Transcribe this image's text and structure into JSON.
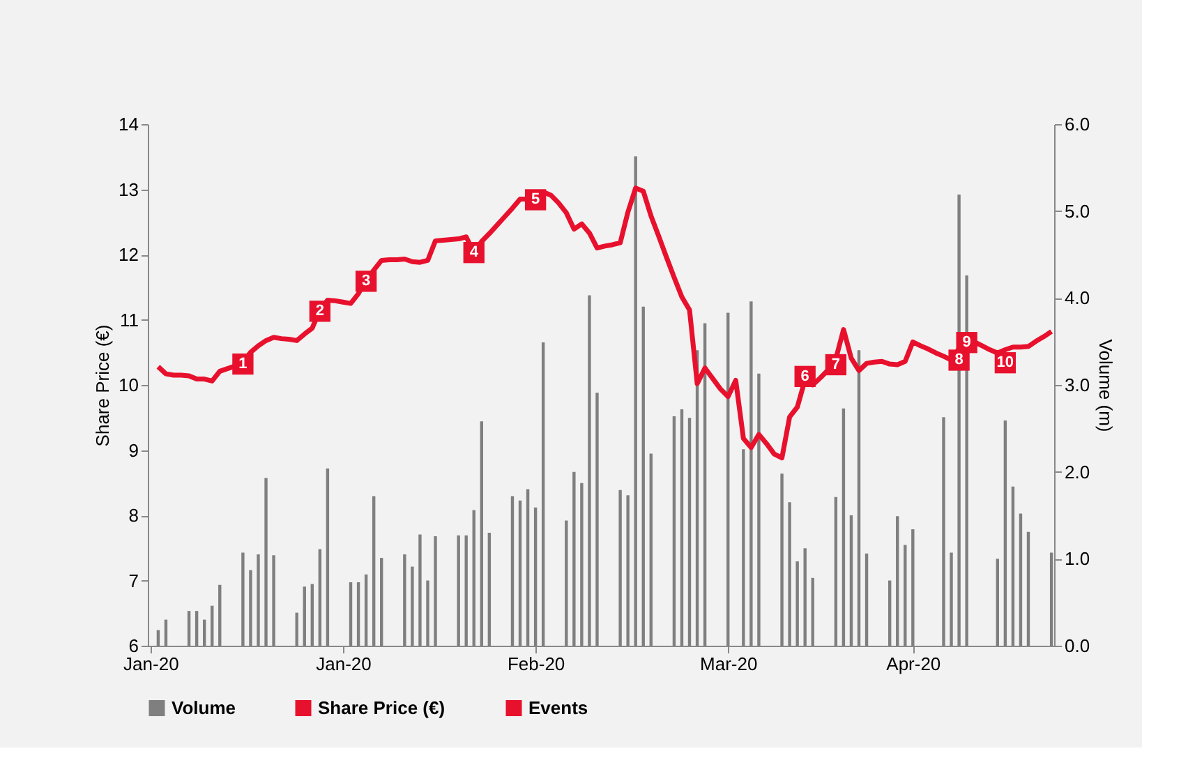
{
  "chart_data": {
    "type": "line",
    "ylabel": "Share Price (€)",
    "y2label": "Volume (m)",
    "categories": [
      "Jan-20",
      null,
      null,
      null,
      null,
      null,
      null,
      null,
      null,
      null,
      null,
      null,
      null,
      null,
      null,
      null,
      null,
      null,
      null,
      null,
      null,
      null,
      null,
      null,
      null,
      "Jan-20",
      null,
      null,
      null,
      null,
      null,
      null,
      null,
      null,
      null,
      null,
      null,
      null,
      null,
      null,
      null,
      null,
      null,
      null,
      null,
      null,
      null,
      null,
      null,
      null,
      "Feb-20",
      null,
      null,
      null,
      null,
      null,
      null,
      null,
      null,
      null,
      null,
      null,
      null,
      null,
      null,
      null,
      null,
      null,
      null,
      null,
      null,
      null,
      null,
      null,
      null,
      "Mar-20",
      null,
      null,
      null,
      null,
      null,
      null,
      null,
      null,
      null,
      null,
      null,
      null,
      null,
      null,
      null,
      null,
      null,
      null,
      null,
      null,
      null,
      null,
      null,
      "Apr-20",
      null,
      null,
      null,
      null,
      null,
      null,
      null,
      null,
      null,
      null,
      null,
      null,
      null,
      null,
      null,
      null,
      null,
      null
    ],
    "ylim": [
      6,
      14
    ],
    "yticks": [
      6,
      7,
      8,
      9,
      10,
      11,
      12,
      13,
      14
    ],
    "y2lim": [
      0,
      6
    ],
    "y2ticks": [
      {
        "value": 0,
        "label": "0.0"
      },
      {
        "value": 1,
        "label": "1.0"
      },
      {
        "value": 2,
        "label": "2.0"
      },
      {
        "value": 3,
        "label": "3.0"
      },
      {
        "value": 4,
        "label": "4.0"
      },
      {
        "value": 5,
        "label": "5.0"
      },
      {
        "value": 6,
        "label": "6.0"
      }
    ],
    "grid": false,
    "legend": "bottom",
    "annotations": [
      "1",
      "2",
      "3",
      "4",
      "5",
      "6",
      "7",
      "8",
      "9",
      "10"
    ],
    "series": [
      {
        "name": "Volume",
        "type": "bar",
        "axis": "y2",
        "color": "#7f7f7f",
        "values": [
          null,
          0.18,
          0.3,
          null,
          null,
          0.4,
          0.4,
          0.3,
          0.46,
          0.7,
          null,
          null,
          1.07,
          0.87,
          1.05,
          1.93,
          1.04,
          null,
          null,
          0.38,
          0.68,
          0.71,
          1.11,
          2.04,
          null,
          null,
          0.73,
          0.73,
          0.82,
          1.72,
          1.01,
          null,
          null,
          1.05,
          0.91,
          1.28,
          0.75,
          1.26,
          null,
          null,
          1.27,
          1.27,
          1.56,
          2.58,
          1.3,
          null,
          null,
          1.72,
          1.67,
          1.8,
          1.59,
          3.49,
          null,
          null,
          1.44,
          2.0,
          1.87,
          4.03,
          2.91,
          null,
          null,
          1.79,
          1.73,
          5.63,
          3.9,
          2.21,
          null,
          null,
          2.64,
          2.72,
          2.62,
          3.4,
          3.71,
          null,
          null,
          3.83,
          null,
          2.26,
          3.96,
          3.13,
          null,
          null,
          1.98,
          1.65,
          0.97,
          1.12,
          0.78,
          null,
          null,
          1.71,
          2.73,
          1.5,
          3.4,
          1.06,
          null,
          null,
          0.75,
          1.49,
          1.16,
          1.34,
          null,
          null,
          null,
          2.63,
          1.07,
          5.19,
          4.26,
          null,
          null,
          null,
          1.0,
          2.59,
          1.83,
          1.52,
          1.31,
          null,
          null,
          1.07
        ]
      },
      {
        "name": "Share Price (€)",
        "color": "#e8112d",
        "marker": "none",
        "line_style": "solid",
        "values": [
          null,
          10.28,
          10.17,
          10.15,
          10.15,
          10.14,
          10.09,
          10.09,
          10.06,
          10.21,
          10.25,
          10.29,
          10.35,
          10.5,
          10.6,
          10.68,
          10.73,
          10.71,
          10.7,
          10.68,
          10.78,
          10.87,
          11.15,
          11.3,
          11.29,
          11.27,
          11.25,
          11.4,
          11.61,
          11.76,
          11.91,
          11.92,
          11.92,
          11.93,
          11.89,
          11.88,
          11.91,
          12.21,
          12.22,
          12.23,
          12.24,
          12.27,
          12.03,
          12.2,
          12.32,
          12.45,
          12.58,
          12.71,
          12.85,
          12.85,
          12.84,
          12.96,
          12.91,
          12.79,
          12.64,
          12.39,
          12.47,
          12.33,
          12.1,
          12.13,
          12.15,
          12.18,
          12.65,
          13.02,
          12.97,
          12.59,
          12.28,
          11.96,
          11.65,
          11.35,
          11.15,
          10.02,
          10.26,
          10.1,
          9.94,
          9.82,
          10.07,
          9.18,
          9.04,
          9.24,
          9.1,
          8.94,
          8.88,
          9.51,
          9.66,
          10.08,
          10.0,
          10.11,
          10.23,
          10.4,
          10.85,
          10.41,
          10.22,
          10.33,
          10.35,
          10.36,
          10.32,
          10.31,
          10.36,
          10.66,
          10.6,
          10.55,
          10.49,
          10.44,
          10.38,
          10.56,
          10.72,
          10.66,
          10.6,
          10.54,
          10.49,
          10.54,
          10.58,
          10.58,
          10.59,
          10.67,
          10.74,
          10.82
        ]
      },
      {
        "name": "Events",
        "type": "scatter",
        "marker": "square",
        "color": "#e8112d",
        "values": [
          null,
          null,
          null,
          null,
          null,
          null,
          null,
          null,
          null,
          null,
          null,
          null,
          10.32,
          null,
          null,
          null,
          null,
          null,
          null,
          null,
          null,
          null,
          11.13,
          null,
          null,
          null,
          null,
          null,
          11.59,
          null,
          null,
          null,
          null,
          null,
          null,
          null,
          null,
          null,
          null,
          null,
          null,
          null,
          12.03,
          null,
          null,
          null,
          null,
          null,
          null,
          null,
          12.84,
          null,
          null,
          null,
          null,
          null,
          null,
          null,
          null,
          null,
          null,
          null,
          null,
          null,
          null,
          null,
          null,
          null,
          null,
          null,
          null,
          null,
          null,
          null,
          null,
          null,
          null,
          null,
          null,
          null,
          null,
          null,
          null,
          null,
          null,
          10.13,
          null,
          null,
          null,
          10.31,
          null,
          null,
          null,
          null,
          null,
          null,
          null,
          null,
          null,
          null,
          null,
          null,
          null,
          null,
          null,
          10.38,
          10.65,
          null,
          null,
          null,
          null,
          10.34,
          null,
          null,
          null,
          null,
          null,
          null
        ]
      }
    ]
  }
}
